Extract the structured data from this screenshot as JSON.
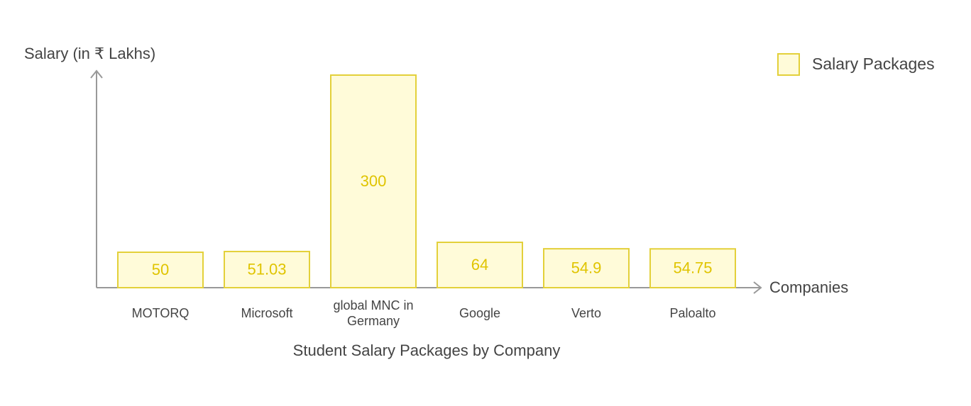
{
  "chart_data": {
    "type": "bar",
    "title": "Student Salary Packages by Company",
    "y_label": "Salary (in ₹ Lakhs)",
    "x_label": "Companies",
    "categories": [
      "MOTORQ",
      "Microsoft",
      "global MNC in Germany",
      "Google",
      "Verto",
      "Paloalto"
    ],
    "series": [
      {
        "name": "Salary Packages",
        "color": "#fffbd9",
        "values": [
          50,
          51.03,
          300,
          64,
          54.9,
          54.75
        ]
      }
    ],
    "ylim": [
      0,
      306
    ],
    "legend": "top-right"
  }
}
